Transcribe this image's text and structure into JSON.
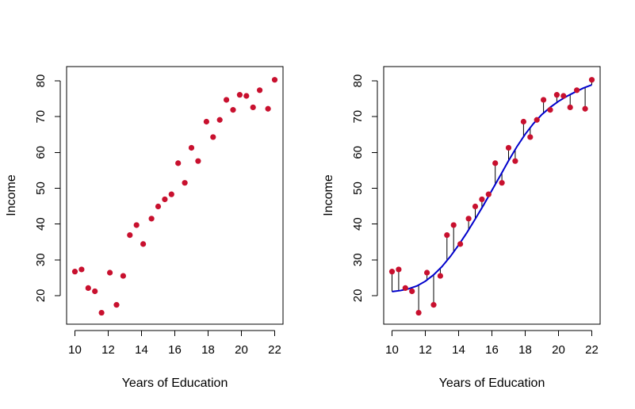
{
  "chart_data": [
    {
      "type": "scatter",
      "xlabel": "Years of Education",
      "ylabel": "Income",
      "xlim": [
        9.5,
        22.5
      ],
      "ylim": [
        12,
        84
      ],
      "xticks": [
        10,
        12,
        14,
        16,
        18,
        20,
        22
      ],
      "yticks": [
        20,
        30,
        40,
        50,
        60,
        70,
        80
      ],
      "grid": false,
      "point_color": "#c8102e",
      "points": [
        {
          "x": 10.0,
          "y": 26.7
        },
        {
          "x": 10.4,
          "y": 27.3
        },
        {
          "x": 10.8,
          "y": 22.1
        },
        {
          "x": 11.2,
          "y": 21.2
        },
        {
          "x": 11.6,
          "y": 15.2
        },
        {
          "x": 12.1,
          "y": 26.4
        },
        {
          "x": 12.5,
          "y": 17.4
        },
        {
          "x": 12.9,
          "y": 25.5
        },
        {
          "x": 13.3,
          "y": 36.9
        },
        {
          "x": 13.7,
          "y": 39.7
        },
        {
          "x": 14.1,
          "y": 34.4
        },
        {
          "x": 14.6,
          "y": 41.5
        },
        {
          "x": 15.0,
          "y": 44.9
        },
        {
          "x": 15.4,
          "y": 46.9
        },
        {
          "x": 15.8,
          "y": 48.3
        },
        {
          "x": 16.2,
          "y": 57.0
        },
        {
          "x": 16.6,
          "y": 51.5
        },
        {
          "x": 17.0,
          "y": 61.3
        },
        {
          "x": 17.4,
          "y": 57.6
        },
        {
          "x": 17.9,
          "y": 68.6
        },
        {
          "x": 18.3,
          "y": 64.3
        },
        {
          "x": 18.7,
          "y": 69.1
        },
        {
          "x": 19.1,
          "y": 74.7
        },
        {
          "x": 19.5,
          "y": 71.9
        },
        {
          "x": 19.9,
          "y": 76.1
        },
        {
          "x": 20.3,
          "y": 75.8
        },
        {
          "x": 20.7,
          "y": 72.6
        },
        {
          "x": 21.1,
          "y": 77.4
        },
        {
          "x": 21.6,
          "y": 72.2
        },
        {
          "x": 22.0,
          "y": 80.3
        }
      ]
    },
    {
      "type": "scatter",
      "xlabel": "Years of Education",
      "ylabel": "Income",
      "xlim": [
        9.5,
        22.5
      ],
      "ylim": [
        12,
        84
      ],
      "xticks": [
        10,
        12,
        14,
        16,
        18,
        20,
        22
      ],
      "yticks": [
        20,
        30,
        40,
        50,
        60,
        70,
        80
      ],
      "grid": false,
      "point_color": "#c8102e",
      "fit_color": "#0000cc",
      "residual_color": "#000000",
      "show_residuals": true,
      "points": [
        {
          "x": 10.0,
          "y": 26.7
        },
        {
          "x": 10.4,
          "y": 27.3
        },
        {
          "x": 10.8,
          "y": 22.1
        },
        {
          "x": 11.2,
          "y": 21.2
        },
        {
          "x": 11.6,
          "y": 15.2
        },
        {
          "x": 12.1,
          "y": 26.4
        },
        {
          "x": 12.5,
          "y": 17.4
        },
        {
          "x": 12.9,
          "y": 25.5
        },
        {
          "x": 13.3,
          "y": 36.9
        },
        {
          "x": 13.7,
          "y": 39.7
        },
        {
          "x": 14.1,
          "y": 34.4
        },
        {
          "x": 14.6,
          "y": 41.5
        },
        {
          "x": 15.0,
          "y": 44.9
        },
        {
          "x": 15.4,
          "y": 46.9
        },
        {
          "x": 15.8,
          "y": 48.3
        },
        {
          "x": 16.2,
          "y": 57.0
        },
        {
          "x": 16.6,
          "y": 51.5
        },
        {
          "x": 17.0,
          "y": 61.3
        },
        {
          "x": 17.4,
          "y": 57.6
        },
        {
          "x": 17.9,
          "y": 68.6
        },
        {
          "x": 18.3,
          "y": 64.3
        },
        {
          "x": 18.7,
          "y": 69.1
        },
        {
          "x": 19.1,
          "y": 74.7
        },
        {
          "x": 19.5,
          "y": 71.9
        },
        {
          "x": 19.9,
          "y": 76.1
        },
        {
          "x": 20.3,
          "y": 75.8
        },
        {
          "x": 20.7,
          "y": 72.6
        },
        {
          "x": 21.1,
          "y": 77.4
        },
        {
          "x": 21.6,
          "y": 72.2
        },
        {
          "x": 22.0,
          "y": 80.3
        }
      ],
      "fit": [
        {
          "x": 10.0,
          "y": 21.1
        },
        {
          "x": 10.5,
          "y": 21.4
        },
        {
          "x": 11.0,
          "y": 21.9
        },
        {
          "x": 11.5,
          "y": 22.7
        },
        {
          "x": 12.0,
          "y": 24.0
        },
        {
          "x": 12.5,
          "y": 25.8
        },
        {
          "x": 13.0,
          "y": 28.1
        },
        {
          "x": 13.5,
          "y": 30.9
        },
        {
          "x": 14.0,
          "y": 34.1
        },
        {
          "x": 14.5,
          "y": 37.6
        },
        {
          "x": 15.0,
          "y": 41.4
        },
        {
          "x": 15.5,
          "y": 45.3
        },
        {
          "x": 16.0,
          "y": 49.4
        },
        {
          "x": 16.5,
          "y": 53.5
        },
        {
          "x": 17.0,
          "y": 57.7
        },
        {
          "x": 17.5,
          "y": 61.6
        },
        {
          "x": 18.0,
          "y": 65.1
        },
        {
          "x": 18.5,
          "y": 68.1
        },
        {
          "x": 19.0,
          "y": 70.6
        },
        {
          "x": 19.5,
          "y": 72.6
        },
        {
          "x": 20.0,
          "y": 74.3
        },
        {
          "x": 20.5,
          "y": 75.7
        },
        {
          "x": 21.0,
          "y": 76.9
        },
        {
          "x": 21.5,
          "y": 78.0
        },
        {
          "x": 22.0,
          "y": 78.9
        }
      ]
    }
  ]
}
